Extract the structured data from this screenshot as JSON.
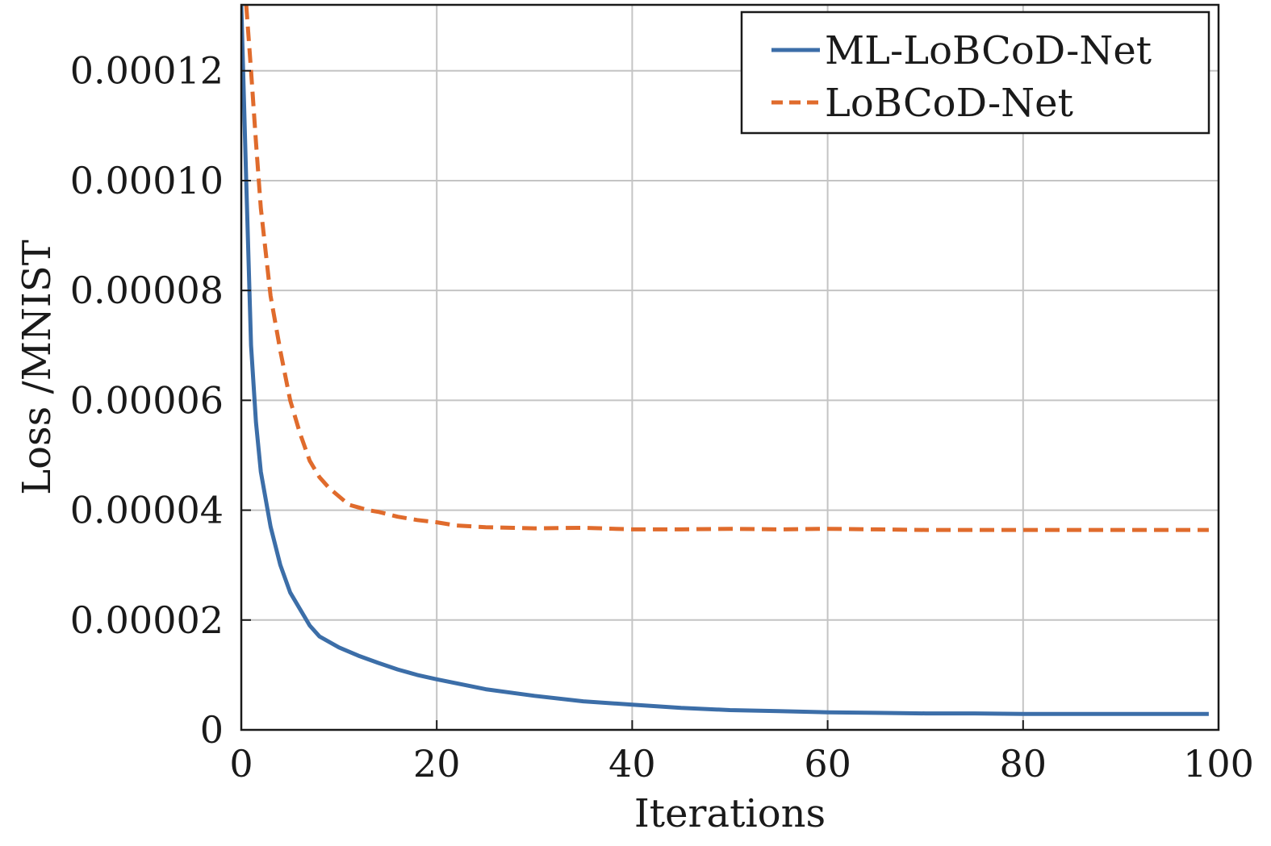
{
  "chart_data": {
    "type": "line",
    "title": "",
    "xlabel": "Iterations",
    "ylabel": "Loss /MNIST",
    "xlim": [
      0,
      100
    ],
    "ylim": [
      0,
      0.000132
    ],
    "xticks": [
      0,
      20,
      40,
      60,
      80,
      100
    ],
    "xtick_labels": [
      "0",
      "20",
      "40",
      "60",
      "80",
      "100"
    ],
    "yticks": [
      0,
      2e-05,
      4e-05,
      6e-05,
      8e-05,
      0.0001,
      0.00012
    ],
    "ytick_labels": [
      "0",
      "0.00002",
      "0.00004",
      "0.00006",
      "0.00008",
      "0.00010",
      "0.00012"
    ],
    "grid": true,
    "legend_position": "top-right",
    "series": [
      {
        "name": "ML-LoBCoD-Net",
        "color": "#3c6ea8",
        "style": "solid",
        "x": [
          0,
          0.5,
          1,
          1.5,
          2,
          3,
          4,
          5,
          6,
          7,
          8,
          10,
          12,
          14,
          16,
          18,
          20,
          25,
          30,
          35,
          40,
          45,
          50,
          55,
          60,
          65,
          70,
          75,
          80,
          85,
          90,
          95,
          99
        ],
        "y": [
          0.000132,
          0.0001,
          7e-05,
          5.6e-05,
          4.7e-05,
          3.7e-05,
          3e-05,
          2.5e-05,
          2.2e-05,
          1.9e-05,
          1.7e-05,
          1.5e-05,
          1.35e-05,
          1.22e-05,
          1.1e-05,
          1e-05,
          9.2e-06,
          7.4e-06,
          6.2e-06,
          5.2e-06,
          4.6e-06,
          4e-06,
          3.6e-06,
          3.4e-06,
          3.2e-06,
          3.1e-06,
          3e-06,
          3e-06,
          2.9e-06,
          2.9e-06,
          2.9e-06,
          2.9e-06,
          2.9e-06
        ]
      },
      {
        "name": "LoBCoD-Net",
        "color": "#e06b2c",
        "style": "dashed",
        "x": [
          0.5,
          1,
          1.5,
          2,
          3,
          4,
          5,
          6,
          7,
          8,
          9,
          10,
          11,
          12,
          13,
          14,
          16,
          18,
          20,
          22,
          25,
          30,
          35,
          40,
          45,
          50,
          55,
          60,
          65,
          70,
          75,
          80,
          85,
          90,
          95,
          99
        ],
        "y": [
          0.000132,
          0.00012,
          0.000107,
          9.5e-05,
          7.9e-05,
          6.9e-05,
          6e-05,
          5.4e-05,
          4.9e-05,
          4.6e-05,
          4.4e-05,
          4.25e-05,
          4.1e-05,
          4.05e-05,
          4e-05,
          3.97e-05,
          3.88e-05,
          3.82e-05,
          3.78e-05,
          3.72e-05,
          3.69e-05,
          3.67e-05,
          3.68e-05,
          3.65e-05,
          3.65e-05,
          3.66e-05,
          3.65e-05,
          3.66e-05,
          3.65e-05,
          3.64e-05,
          3.64e-05,
          3.64e-05,
          3.64e-05,
          3.64e-05,
          3.64e-05,
          3.64e-05
        ]
      }
    ]
  }
}
